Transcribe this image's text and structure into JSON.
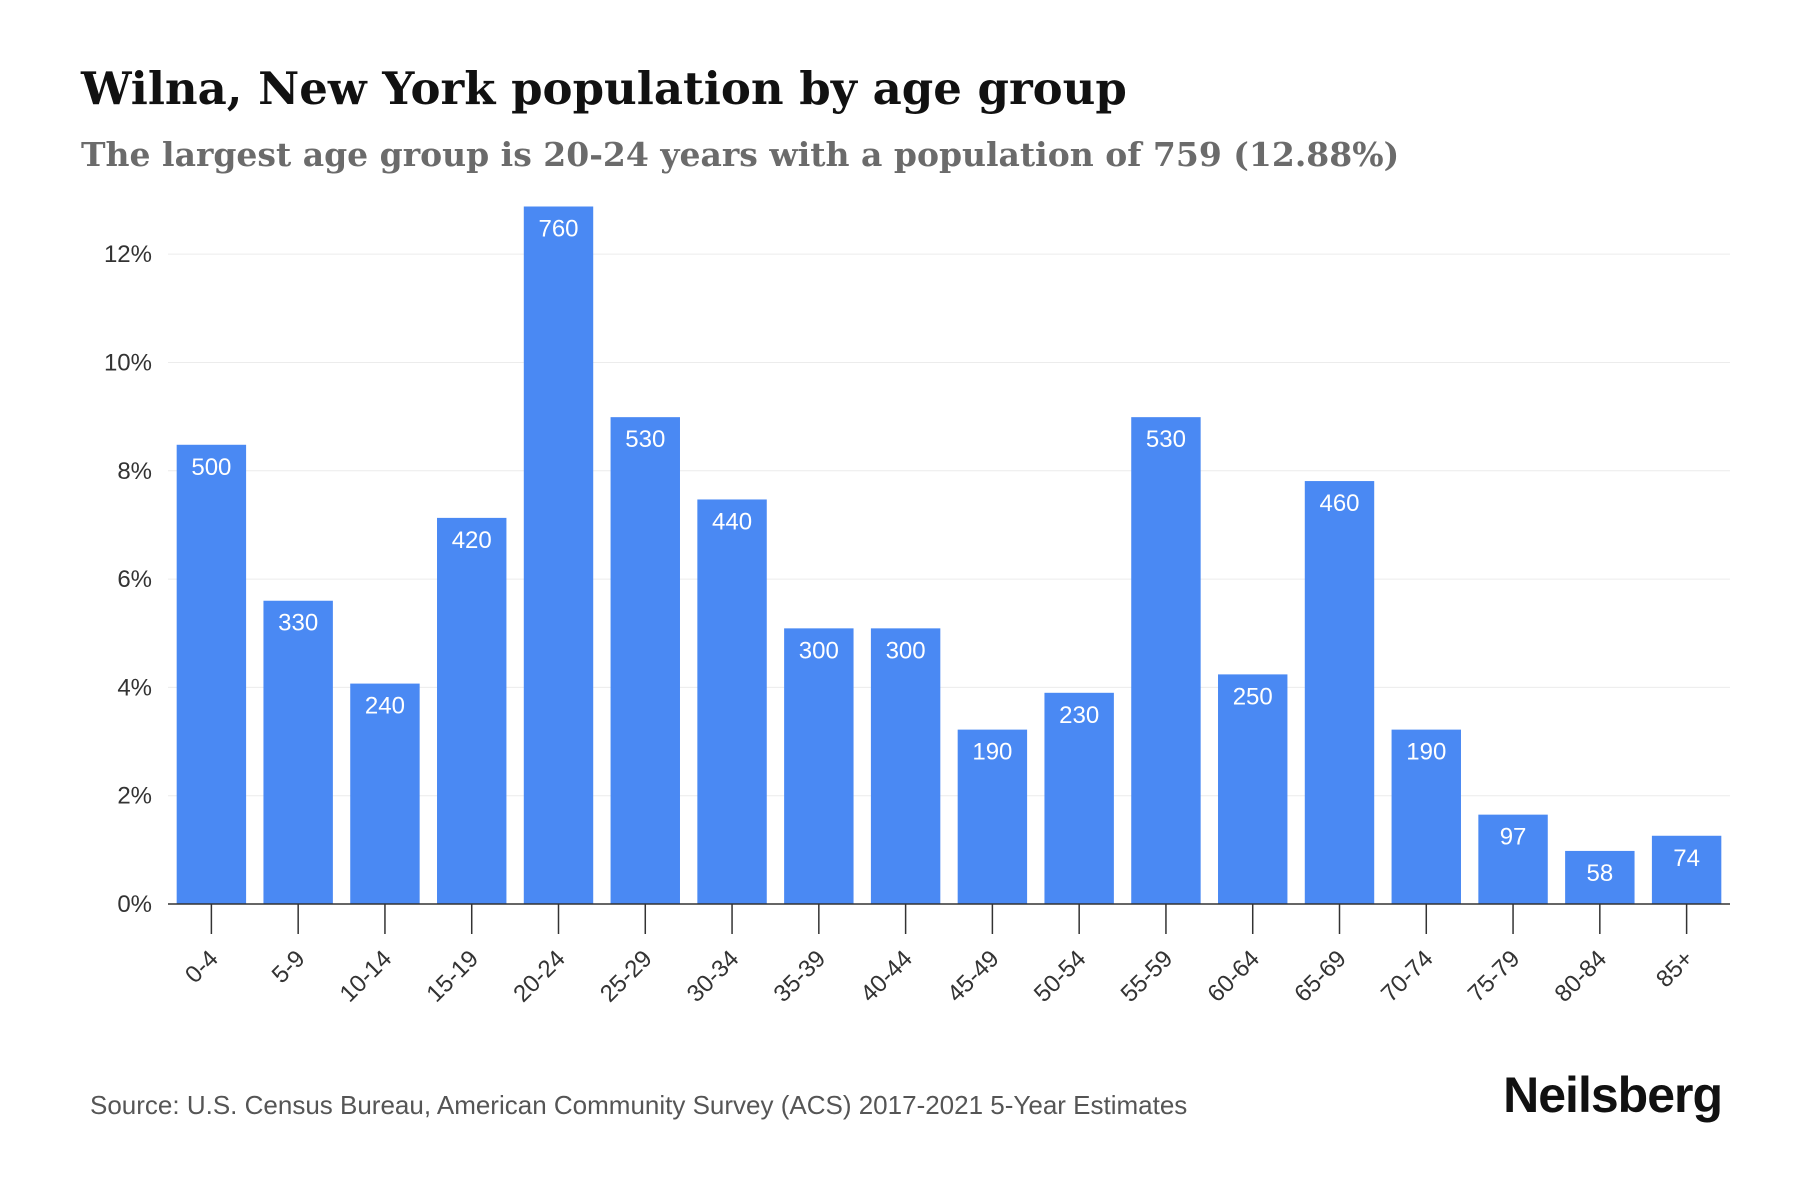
{
  "title": "Wilna, New York population by age group",
  "subtitle": "The largest age group is 20-24 years with a population of 759 (12.88%)",
  "source": "Source: U.S. Census Bureau, American Community Survey (ACS) 2017-2021 5-Year Estimates",
  "brand": "Neilsberg",
  "colors": {
    "bar": "#4a89f3",
    "grid": "#ececec",
    "axis": "#333333"
  },
  "chart_data": {
    "type": "bar",
    "categories": [
      "0-4",
      "5-9",
      "10-14",
      "15-19",
      "20-24",
      "25-29",
      "30-34",
      "35-39",
      "40-44",
      "45-49",
      "50-54",
      "55-59",
      "60-64",
      "65-69",
      "70-74",
      "75-79",
      "80-84",
      "85+"
    ],
    "values": [
      8.48,
      5.6,
      4.07,
      7.13,
      12.88,
      8.99,
      7.47,
      5.09,
      5.09,
      3.22,
      3.9,
      8.99,
      4.24,
      7.81,
      3.22,
      1.65,
      0.98,
      1.26
    ],
    "value_labels": [
      "500",
      "330",
      "240",
      "420",
      "760",
      "530",
      "440",
      "300",
      "300",
      "190",
      "230",
      "530",
      "250",
      "460",
      "190",
      "97",
      "58",
      "74"
    ],
    "yticks": [
      "0%",
      "2%",
      "4%",
      "6%",
      "8%",
      "10%",
      "12%"
    ],
    "ylim": [
      0,
      13
    ],
    "grid": true,
    "x_tick_rotation": -45
  }
}
